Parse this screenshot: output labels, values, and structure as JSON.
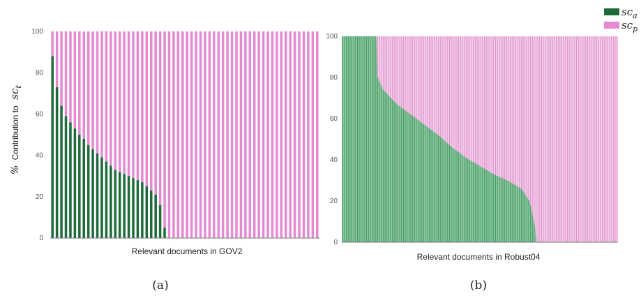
{
  "colors": {
    "sc_a": "#1e6b3a",
    "sc_p": "#e58ad2",
    "axis": "#777777"
  },
  "legend": {
    "position": "top-right",
    "items": [
      {
        "base": "sc",
        "sub": "a",
        "color": "#1e6b3a"
      },
      {
        "base": "sc",
        "sub": "p",
        "color": "#e58ad2"
      }
    ]
  },
  "ylabel": {
    "prefix": "%",
    "word": "Contribution to",
    "base": "sc",
    "sub": "t"
  },
  "chart_data": [
    {
      "type": "bar",
      "stacked": true,
      "panel": "(a)",
      "xlabel": "Relevant documents in GOV2",
      "ylim": [
        0,
        100
      ],
      "yticks": [
        "0",
        "20",
        "40",
        "60",
        "80",
        "100"
      ],
      "bar_count": 60,
      "series": [
        {
          "name": "sc_a",
          "values": [
            88,
            73,
            64,
            59,
            56,
            53,
            50,
            48,
            45,
            43,
            41,
            39,
            37,
            35,
            33,
            32,
            31,
            30,
            29,
            28,
            27,
            25,
            23,
            21,
            16,
            5,
            0,
            0,
            0,
            0,
            0,
            0,
            0,
            0,
            0,
            0,
            0,
            0,
            0,
            0,
            0,
            0,
            0,
            0,
            0,
            0,
            0,
            0,
            0,
            0,
            0,
            0,
            0,
            0,
            0,
            0,
            0,
            0,
            0,
            0
          ]
        },
        {
          "name": "sc_p",
          "values": [
            12,
            27,
            36,
            41,
            44,
            47,
            50,
            52,
            55,
            57,
            59,
            61,
            63,
            65,
            67,
            68,
            69,
            70,
            71,
            72,
            73,
            75,
            77,
            79,
            84,
            95,
            100,
            100,
            100,
            100,
            100,
            100,
            100,
            100,
            100,
            100,
            100,
            100,
            100,
            100,
            100,
            100,
            100,
            100,
            100,
            100,
            100,
            100,
            100,
            100,
            100,
            100,
            100,
            100,
            100,
            100,
            100,
            100,
            100,
            100
          ]
        }
      ]
    },
    {
      "type": "area",
      "stacked": true,
      "panel": "(b)",
      "xlabel": "Relevant documents in Robust04",
      "ylim": [
        0,
        100
      ],
      "yticks": [
        "0",
        "20",
        "40",
        "60",
        "80",
        "100"
      ],
      "curve": {
        "x_fraction": [
          0,
          0.125,
          0.13,
          0.15,
          0.2,
          0.25,
          0.3,
          0.35,
          0.4,
          0.45,
          0.5,
          0.55,
          0.6,
          0.65,
          0.68,
          0.7,
          0.705,
          0.71,
          1.0
        ],
        "sc_a": [
          100,
          100,
          80,
          74,
          67,
          62,
          57,
          52,
          46,
          41,
          37,
          33,
          30,
          26,
          20,
          7,
          0,
          0,
          0
        ]
      }
    }
  ]
}
